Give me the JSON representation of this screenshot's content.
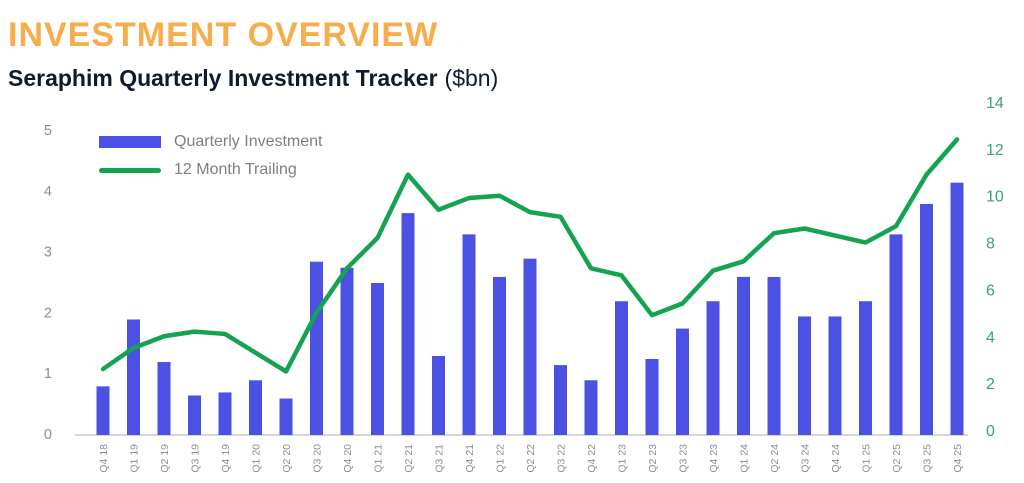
{
  "header": {
    "title": "INVESTMENT OVERVIEW",
    "subtitle": "Seraphim Quarterly Investment Tracker",
    "subtitle_unit": "($bn)"
  },
  "legend": {
    "items": [
      {
        "label": "Quarterly Investment",
        "swatch": "bar"
      },
      {
        "label": "12 Month Trailing",
        "swatch": "line"
      }
    ]
  },
  "chart_data": {
    "type": "bar+line",
    "title": "Seraphim Quarterly Investment Tracker ($bn)",
    "categories": [
      "Q4 18",
      "Q1 19",
      "Q2 19",
      "Q3 19",
      "Q4 19",
      "Q1 20",
      "Q2 20",
      "Q3 20",
      "Q4 20",
      "Q1 21",
      "Q2 21",
      "Q3 21",
      "Q4 21",
      "Q1 22",
      "Q2 22",
      "Q3 22",
      "Q4 22",
      "Q1 23",
      "Q2 23",
      "Q3 23",
      "Q4 23",
      "Q1 24",
      "Q2 24",
      "Q3 24",
      "Q4 24",
      "Q1 25",
      "Q2 25",
      "Q3 25",
      "Q4 25"
    ],
    "series": [
      {
        "name": "Quarterly Investment",
        "type": "bar",
        "axis": "left",
        "color": "#4A51E3",
        "values": [
          0.8,
          1.9,
          1.2,
          0.65,
          0.7,
          0.9,
          0.6,
          2.85,
          2.75,
          2.5,
          3.65,
          1.3,
          3.3,
          2.6,
          2.9,
          1.15,
          0.9,
          2.2,
          1.25,
          1.75,
          2.2,
          2.6,
          2.6,
          1.95,
          1.95,
          2.2,
          3.3,
          3.8,
          4.15
        ]
      },
      {
        "name": "12 Month Trailing",
        "type": "line",
        "axis": "right",
        "color": "#14A351",
        "values": [
          2.6,
          3.5,
          4.0,
          4.2,
          4.1,
          3.3,
          2.5,
          5.0,
          6.9,
          8.2,
          10.9,
          9.4,
          9.9,
          10.0,
          9.3,
          9.1,
          6.9,
          6.6,
          4.9,
          5.4,
          6.8,
          7.2,
          8.4,
          8.6,
          8.3,
          8.0,
          8.7,
          10.9,
          12.4
        ]
      }
    ],
    "left_axis": {
      "min": 0,
      "max": 5,
      "ticks": [
        0,
        1,
        2,
        3,
        4,
        5
      ],
      "color": "#8A8E95"
    },
    "right_axis": {
      "min": 0,
      "max": 14,
      "ticks": [
        0,
        2,
        4,
        6,
        8,
        10,
        12,
        14
      ],
      "color": "#3CA36C"
    },
    "grid": false,
    "legend_position": "top-left"
  },
  "colors": {
    "title": "#F8AD4D",
    "subtitle": "#0E1B2C",
    "x_label": "#8A8E95",
    "legend_text": "#7C8086",
    "axis_line": "#C7CACE",
    "background": "#FFFFFF"
  }
}
